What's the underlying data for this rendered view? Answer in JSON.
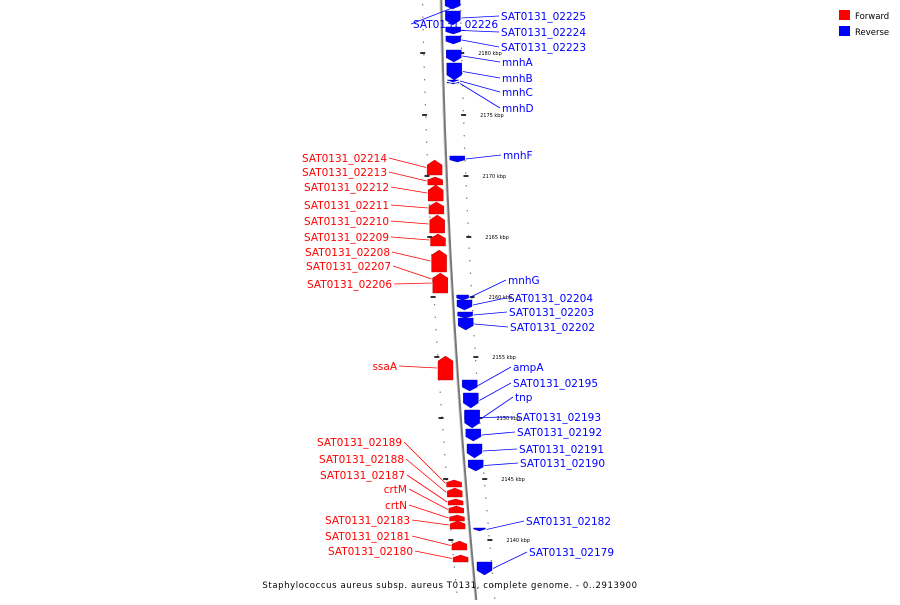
{
  "title": "Staphylococcus aureus subsp. aureus T0131, complete genome. - 0..2913900",
  "legend": {
    "placement": "top-right",
    "items": [
      {
        "label": "Forward",
        "color": "#ff0000"
      },
      {
        "label": "Reverse",
        "color": "#0000ff"
      }
    ]
  },
  "colors": {
    "forward": "#ff0000",
    "reverse": "#0000ff",
    "backbone": "#888888",
    "tick": "#000000"
  },
  "ticks": [
    "2180 kbp",
    "2175 kbp",
    "2170 kbp",
    "2165 kbp",
    "2160 kbp",
    "2155 kbp",
    "2150 kbp",
    "2145 kbp",
    "2140 kbp"
  ],
  "genes": [
    {
      "name": "SAT0131_02226",
      "strand": "reverse"
    },
    {
      "name": "SAT0131_02225",
      "strand": "reverse"
    },
    {
      "name": "SAT0131_02224",
      "strand": "reverse"
    },
    {
      "name": "SAT0131_02223",
      "strand": "reverse"
    },
    {
      "name": "mnhA",
      "strand": "reverse"
    },
    {
      "name": "mnhB",
      "strand": "reverse"
    },
    {
      "name": "mnhC",
      "strand": "reverse"
    },
    {
      "name": "mnhD",
      "strand": "reverse"
    },
    {
      "name": "mnhF",
      "strand": "reverse"
    },
    {
      "name": "SAT0131_02214",
      "strand": "forward"
    },
    {
      "name": "SAT0131_02213",
      "strand": "forward"
    },
    {
      "name": "SAT0131_02212",
      "strand": "forward"
    },
    {
      "name": "SAT0131_02211",
      "strand": "forward"
    },
    {
      "name": "SAT0131_02210",
      "strand": "forward"
    },
    {
      "name": "SAT0131_02209",
      "strand": "forward"
    },
    {
      "name": "SAT0131_02208",
      "strand": "forward"
    },
    {
      "name": "SAT0131_02207",
      "strand": "forward"
    },
    {
      "name": "SAT0131_02206",
      "strand": "forward"
    },
    {
      "name": "mnhG",
      "strand": "reverse"
    },
    {
      "name": "SAT0131_02204",
      "strand": "reverse"
    },
    {
      "name": "SAT0131_02203",
      "strand": "reverse"
    },
    {
      "name": "SAT0131_02202",
      "strand": "reverse"
    },
    {
      "name": "ssaA",
      "strand": "forward"
    },
    {
      "name": "ampA",
      "strand": "reverse"
    },
    {
      "name": "SAT0131_02195",
      "strand": "reverse"
    },
    {
      "name": "tnp",
      "strand": "reverse"
    },
    {
      "name": "SAT0131_02193",
      "strand": "reverse"
    },
    {
      "name": "SAT0131_02192",
      "strand": "reverse"
    },
    {
      "name": "SAT0131_02191",
      "strand": "reverse"
    },
    {
      "name": "SAT0131_02190",
      "strand": "reverse"
    },
    {
      "name": "SAT0131_02189",
      "strand": "forward"
    },
    {
      "name": "SAT0131_02188",
      "strand": "forward"
    },
    {
      "name": "SAT0131_02187",
      "strand": "forward"
    },
    {
      "name": "crtM",
      "strand": "forward"
    },
    {
      "name": "crtN",
      "strand": "forward"
    },
    {
      "name": "SAT0131_02183",
      "strand": "forward"
    },
    {
      "name": "SAT0131_02182",
      "strand": "reverse"
    },
    {
      "name": "SAT0131_02181",
      "strand": "forward"
    },
    {
      "name": "SAT0131_02180",
      "strand": "forward"
    },
    {
      "name": "SAT0131_02179",
      "strand": "reverse"
    }
  ]
}
